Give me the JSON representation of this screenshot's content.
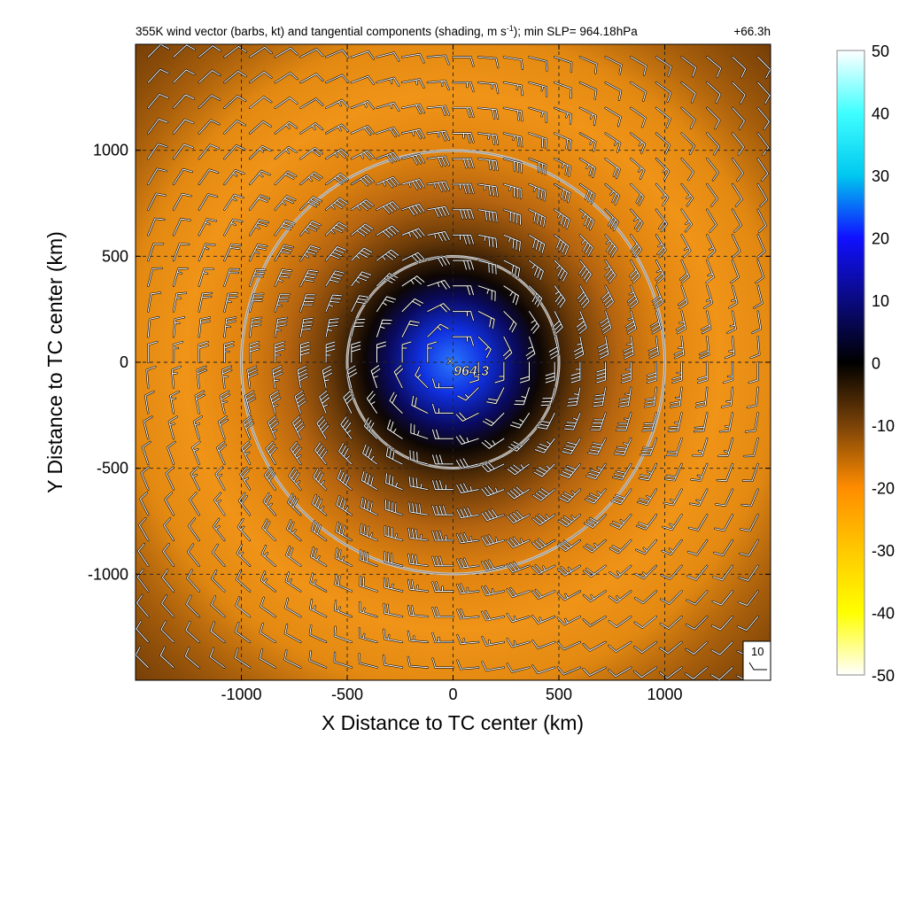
{
  "chart_data": {
    "type": "heatmap",
    "title": "355K wind vector (barbs, kt) and tangential components (shading, m s",
    "title_units_sup": "-1",
    "title_tail": "); min SLP= 964.18hPa",
    "forecast_hour": "+66.3h",
    "xlabel": "X Distance to TC center (km)",
    "ylabel": "Y Distance to TC center (km)",
    "xlim": [
      -1500,
      1500
    ],
    "ylim": [
      -1500,
      1500
    ],
    "x_ticks": [
      -1000,
      -500,
      0,
      500,
      1000
    ],
    "y_ticks": [
      -1000,
      -500,
      0,
      500,
      1000
    ],
    "x_tick_labels": [
      "-1000",
      "-500",
      "0",
      "500",
      "1000"
    ],
    "y_tick_labels": [
      "-1000",
      "-500",
      "0",
      "500",
      "1000"
    ],
    "grid": true,
    "grid_style": "dashed",
    "range_rings_km": [
      500,
      1000
    ],
    "center_marker": "×",
    "center_label": "964.3",
    "center_xy": [
      0,
      0
    ],
    "colorbar": {
      "label_values": [
        50,
        40,
        30,
        20,
        10,
        0,
        -10,
        -20,
        -30,
        -40,
        -50
      ],
      "labels": [
        "50",
        "40",
        "30",
        "20",
        "10",
        "0",
        "-10",
        "-20",
        "-30",
        "-40",
        "-50"
      ],
      "range": [
        -50,
        50
      ],
      "colors": {
        "c_pos50": "#ffffff",
        "c_pos40": "#40ffff",
        "c_pos30": "#00c8f0",
        "c_pos20": "#1010ff",
        "c_pos10": "#0a0a80",
        "c_zero": "#000000",
        "c_neg10": "#7a4208",
        "c_neg20": "#ff8c00",
        "c_neg30": "#ffc800",
        "c_neg40": "#ffff00",
        "c_neg50": "#ffffff"
      }
    },
    "field": {
      "description_values_ms": {
        "eye_core": 8,
        "radius_300km": -8,
        "outer_band_peak": -20,
        "domain_corner": -12
      }
    },
    "barb_reference": {
      "value": 10,
      "label": "10"
    },
    "barbs": {
      "grid_spacing_km": 120,
      "units": "kt"
    }
  },
  "colors": {
    "frame": "#000000",
    "ring": "#c8c8c8",
    "grid": "#222222",
    "barb": "#ffffff",
    "barb_outline": "#000000"
  }
}
